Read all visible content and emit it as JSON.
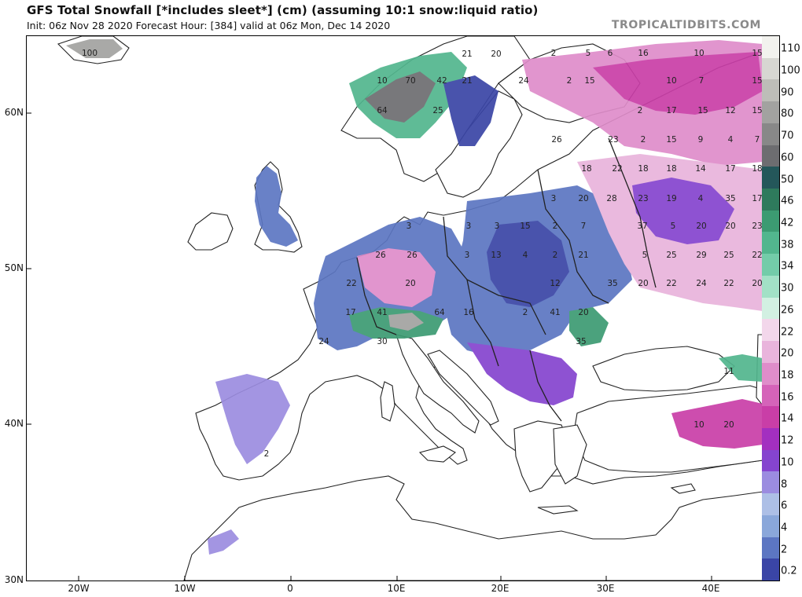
{
  "header": {
    "title": "GFS Total Snowfall [*includes sleet*] (cm) (assuming 10:1 snow:liquid ratio)",
    "subtitle": "Init: 06z Nov 28 2020   Forecast Hour: [384]   valid at 06z Mon, Dec 14 2020",
    "brand": "TROPICALTIDBITS.COM"
  },
  "axes": {
    "lat_labels": [
      "60N",
      "50N",
      "40N",
      "30N"
    ],
    "lon_labels": [
      "20W",
      "10W",
      "0",
      "10E",
      "20E",
      "30E",
      "40E"
    ]
  },
  "colorbar": {
    "labels": [
      "110",
      "100",
      "90",
      "80",
      "70",
      "60",
      "50",
      "46",
      "42",
      "38",
      "34",
      "30",
      "26",
      "22",
      "20",
      "18",
      "16",
      "14",
      "12",
      "10",
      "8",
      "6",
      "4",
      "2",
      "0.2"
    ],
    "colors": [
      "#f2f2ee",
      "#d7d7d2",
      "#bdbdb8",
      "#a2a2a0",
      "#888888",
      "#6d6d70",
      "#24575a",
      "#2e7a5c",
      "#3c9b72",
      "#52b68e",
      "#73cca9",
      "#a2e1c6",
      "#d2f0e2",
      "#f3d7eb",
      "#e9b4dc",
      "#df8dca",
      "#d563b9",
      "#c93ea7",
      "#a32fc0",
      "#8544cf",
      "#9b8ce0",
      "#adbfe6",
      "#8aa7da",
      "#5c76c2",
      "#3a45a6"
    ]
  },
  "map_values": [
    {
      "t": "100"
    },
    {
      "t": "21"
    },
    {
      "t": "20"
    },
    {
      "t": "70"
    },
    {
      "t": "42"
    },
    {
      "t": "21"
    },
    {
      "t": "10"
    },
    {
      "t": "64"
    },
    {
      "t": "25"
    },
    {
      "t": "2"
    },
    {
      "t": "5"
    },
    {
      "t": "6"
    },
    {
      "t": "16"
    },
    {
      "t": "10"
    },
    {
      "t": "15"
    },
    {
      "t": "24"
    },
    {
      "t": "15"
    },
    {
      "t": "10"
    },
    {
      "t": "7"
    },
    {
      "t": "15"
    },
    {
      "t": "2"
    },
    {
      "t": "2"
    },
    {
      "t": "17"
    },
    {
      "t": "15"
    },
    {
      "t": "12"
    },
    {
      "t": "15"
    },
    {
      "t": "26"
    },
    {
      "t": "23"
    },
    {
      "t": "2"
    },
    {
      "t": "15"
    },
    {
      "t": "9"
    },
    {
      "t": "4"
    },
    {
      "t": "7"
    },
    {
      "t": "18"
    },
    {
      "t": "22"
    },
    {
      "t": "18"
    },
    {
      "t": "18"
    },
    {
      "t": "14"
    },
    {
      "t": "17"
    },
    {
      "t": "18"
    },
    {
      "t": "3"
    },
    {
      "t": "20"
    },
    {
      "t": "28"
    },
    {
      "t": "23"
    },
    {
      "t": "19"
    },
    {
      "t": "4"
    },
    {
      "t": "35"
    },
    {
      "t": "17"
    },
    {
      "t": "3"
    },
    {
      "t": "3"
    },
    {
      "t": "3"
    },
    {
      "t": "15"
    },
    {
      "t": "2"
    },
    {
      "t": "7"
    },
    {
      "t": "37"
    },
    {
      "t": "5"
    },
    {
      "t": "20"
    },
    {
      "t": "20"
    },
    {
      "t": "23"
    },
    {
      "t": "26"
    },
    {
      "t": "26"
    },
    {
      "t": "3"
    },
    {
      "t": "13"
    },
    {
      "t": "4"
    },
    {
      "t": "2"
    },
    {
      "t": "21"
    },
    {
      "t": "5"
    },
    {
      "t": "25"
    },
    {
      "t": "29"
    },
    {
      "t": "25"
    },
    {
      "t": "22"
    },
    {
      "t": "22"
    },
    {
      "t": "20"
    },
    {
      "t": "12"
    },
    {
      "t": "35"
    },
    {
      "t": "20"
    },
    {
      "t": "22"
    },
    {
      "t": "24"
    },
    {
      "t": "22"
    },
    {
      "t": "20"
    },
    {
      "t": "17"
    },
    {
      "t": "41"
    },
    {
      "t": "64"
    },
    {
      "t": "16"
    },
    {
      "t": "2"
    },
    {
      "t": "41"
    },
    {
      "t": "20"
    },
    {
      "t": "24"
    },
    {
      "t": "30"
    },
    {
      "t": "35"
    },
    {
      "t": "11"
    },
    {
      "t": "10"
    },
    {
      "t": "20"
    },
    {
      "t": "2"
    }
  ]
}
